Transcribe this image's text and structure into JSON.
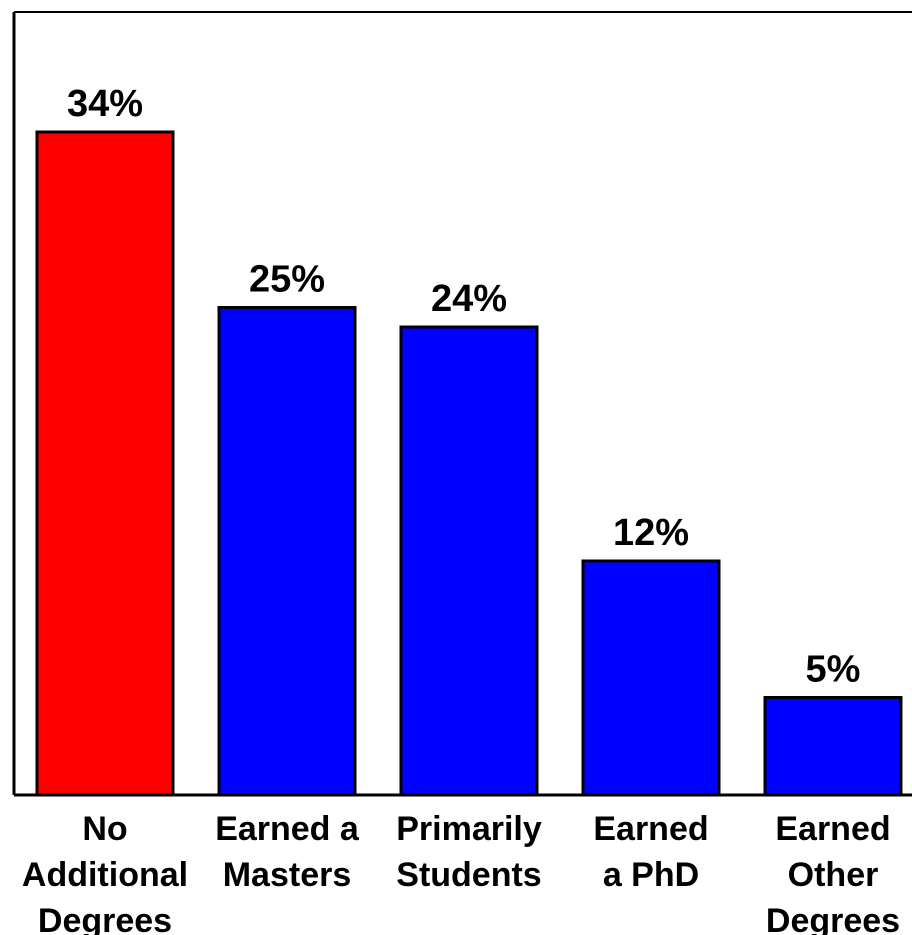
{
  "chart_data": {
    "type": "bar",
    "categories": [
      [
        "No",
        "Additional",
        "Degrees"
      ],
      [
        "Earned a",
        "Masters"
      ],
      [
        "Primarily",
        "Students"
      ],
      [
        "Earned",
        "a PhD"
      ],
      [
        "Earned",
        "Other",
        "Degrees"
      ]
    ],
    "values": [
      34,
      25,
      24,
      12,
      5
    ],
    "value_labels": [
      "34%",
      "25%",
      "24%",
      "12%",
      "5%"
    ],
    "bar_colors": [
      "#ff0000",
      "#0000ff",
      "#0000ff",
      "#0000ff",
      "#0000ff"
    ],
    "ylim": [
      0,
      40
    ],
    "grid": false,
    "legend": "none"
  }
}
